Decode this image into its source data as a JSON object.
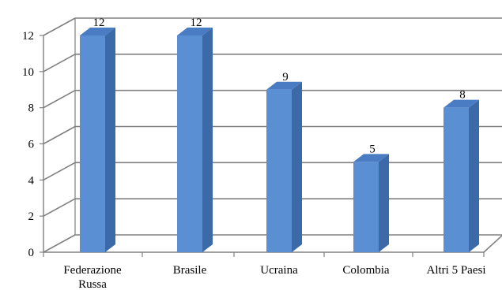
{
  "chart_data": {
    "type": "bar",
    "style": "3d-column",
    "categories": [
      [
        "Federazione",
        "Russa"
      ],
      [
        "Brasile"
      ],
      [
        "Ucraina"
      ],
      [
        "Colombia"
      ],
      [
        "Altri 5 Paesi"
      ]
    ],
    "values": [
      12,
      12,
      9,
      5,
      8
    ],
    "data_labels": [
      "12",
      "12",
      "9",
      "5",
      "8"
    ],
    "title": "",
    "xlabel": "",
    "ylabel": "",
    "ylim": [
      0,
      12
    ],
    "yticks": [
      "0",
      "2",
      "4",
      "6",
      "8",
      "10",
      "12"
    ],
    "grid": true,
    "legend": "none",
    "colors": {
      "bar_front": "#5b8fd4",
      "bar_side": "#3c6aa8",
      "bar_top": "#4a7cc4",
      "grid": "#808080",
      "text": "#000000"
    }
  }
}
